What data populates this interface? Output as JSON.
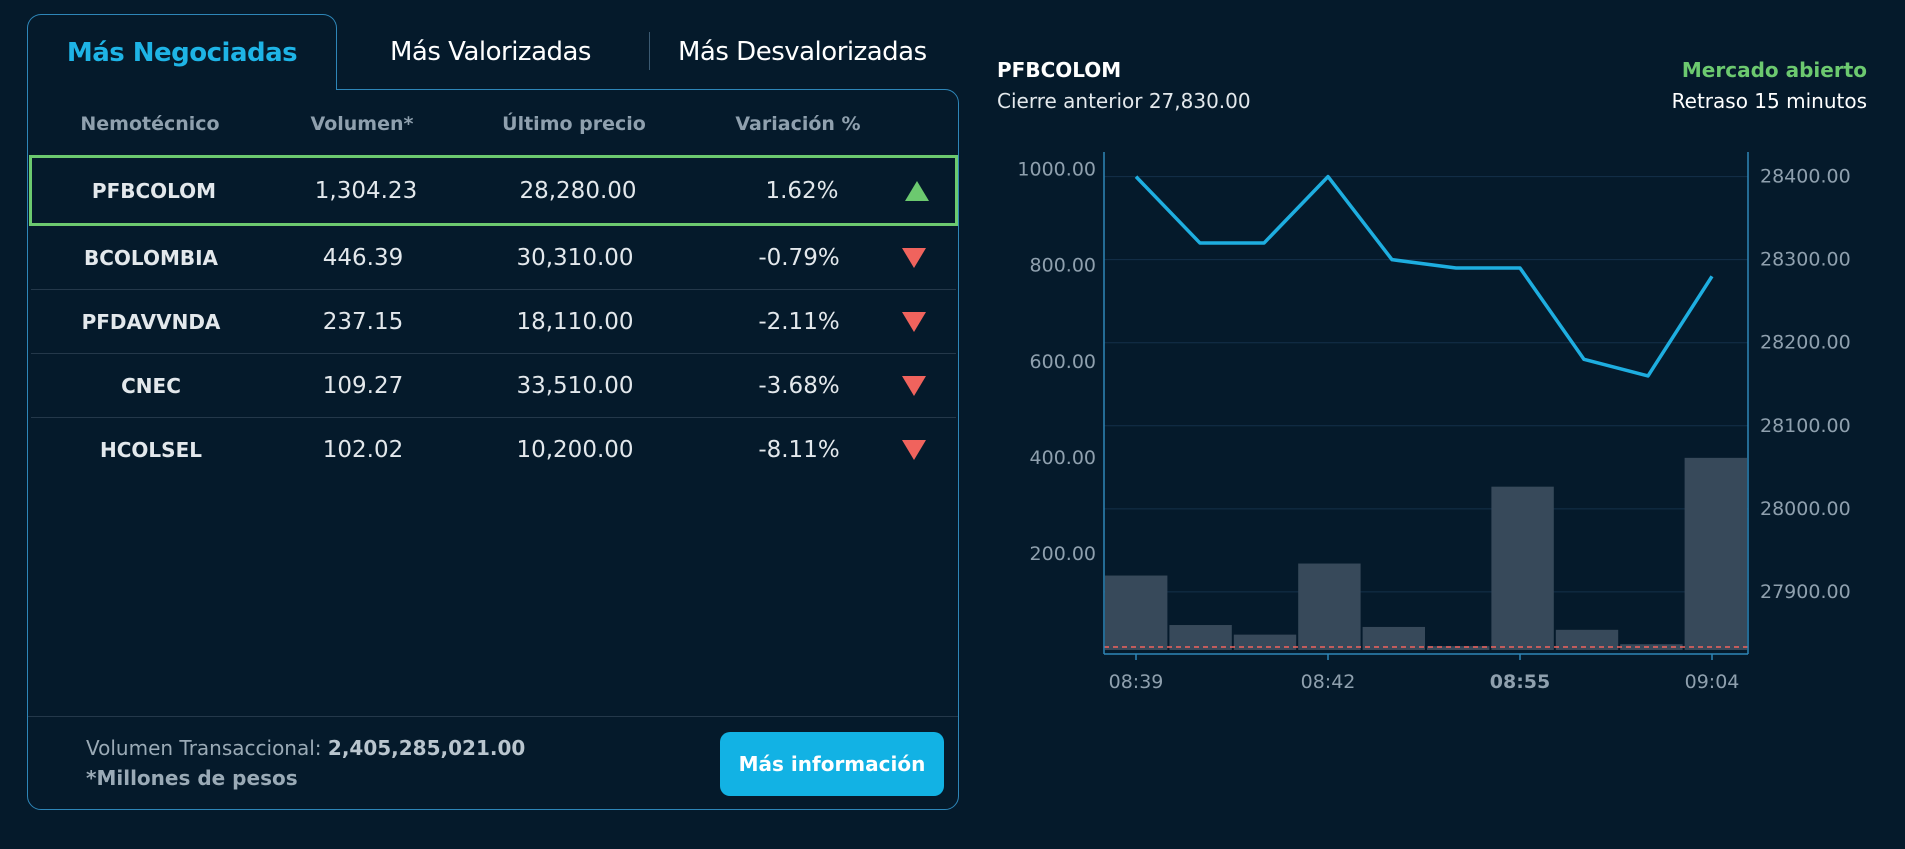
{
  "tabs": {
    "active": "Más Negociadas",
    "second": "Más Valorizadas",
    "third": "Más Desvalorizadas"
  },
  "table": {
    "headers": [
      "Nemotécnico",
      "Volumen*",
      "Último precio",
      "Variación %"
    ],
    "rows": [
      {
        "symbol": "PFBCOLOM",
        "volume": "1,304.23",
        "price": "28,280.00",
        "change": "1.62%",
        "direction": "up"
      },
      {
        "symbol": "BCOLOMBIA",
        "volume": "446.39",
        "price": "30,310.00",
        "change": "-0.79%",
        "direction": "down"
      },
      {
        "symbol": "PFDAVVNDA",
        "volume": "237.15",
        "price": "18,110.00",
        "change": "-2.11%",
        "direction": "down"
      },
      {
        "symbol": "CNEC",
        "volume": "109.27",
        "price": "33,510.00",
        "change": "-3.68%",
        "direction": "down"
      },
      {
        "symbol": "HCOLSEL",
        "volume": "102.02",
        "price": "10,200.00",
        "change": "-8.11%",
        "direction": "down"
      }
    ]
  },
  "footer": {
    "volume_label": "Volumen Transaccional:",
    "volume_value": "2,405,285,021.00",
    "note": "*Millones de pesos",
    "button": "Más información"
  },
  "detail": {
    "symbol": "PFBCOLOM",
    "previous_close": "Cierre anterior 27,830.00",
    "market_status": "Mercado abierto",
    "delay": "Retraso 15 minutos"
  },
  "colors": {
    "accent": "#12b2e4",
    "up": "#6cc96f",
    "down": "#f0635d",
    "line": "#1eaee0",
    "bar": "#37495a"
  },
  "chart_data": {
    "type": "bar+line",
    "x_ticks": [
      "08:39",
      "08:42",
      "08:55",
      "09:04"
    ],
    "x_ticks_bold": [
      false,
      false,
      true,
      false
    ],
    "volume_axis": {
      "ticks": [
        "200.00",
        "400.00",
        "600.00",
        "800.00",
        "1000.00"
      ],
      "ylim": [
        0,
        1020
      ]
    },
    "price_axis": {
      "ticks": [
        "27900.00",
        "28000.00",
        "28100.00",
        "28200.00",
        "28300.00",
        "28400.00"
      ],
      "ylim": [
        27830,
        28420
      ]
    },
    "volume_bars": [
      155,
      52,
      32,
      180,
      48,
      8,
      340,
      42,
      12,
      400
    ],
    "price_line": [
      28400,
      28320,
      28320,
      28400,
      28300,
      28290,
      28290,
      28180,
      28160,
      28280
    ],
    "reference_line": 27830
  }
}
